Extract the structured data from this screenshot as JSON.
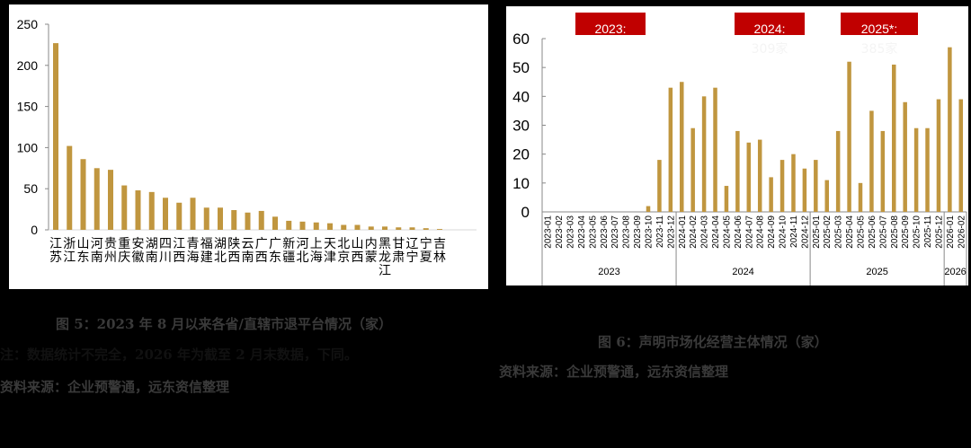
{
  "colors": {
    "bar": "#c0963f",
    "annotation_box": "#c00000",
    "axis": "#888888",
    "background": "#000000",
    "panel": "#ffffff"
  },
  "chart_data": [
    {
      "type": "bar",
      "title": "图5：2023年8月以来各省/直辖市退平台情况（家）",
      "xlabel": "",
      "ylabel": "",
      "ylim": [
        0,
        250
      ],
      "yticks": [
        0,
        50,
        100,
        150,
        200,
        250
      ],
      "grid": false,
      "legend": null,
      "categories": [
        "江苏",
        "浙江",
        "山东",
        "河南",
        "贵州",
        "重庆",
        "安徽",
        "湖南",
        "四川",
        "江西",
        "青海",
        "福建",
        "湖北",
        "陕西",
        "云南",
        "广西",
        "广东",
        "新疆",
        "河北",
        "上海",
        "天津",
        "北京",
        "山西",
        "内蒙",
        "黑龙江",
        "甘肃",
        "辽宁",
        "宁夏",
        "吉林"
      ],
      "values": [
        227,
        102,
        86,
        75,
        73,
        54,
        48,
        46,
        39,
        33,
        39,
        27,
        27,
        24,
        21,
        23,
        16,
        11,
        10,
        9,
        8,
        6,
        6,
        4,
        4,
        3,
        3,
        2,
        1
      ]
    },
    {
      "type": "bar",
      "title": "图6：声明市场化经营主体情况（家）",
      "xlabel": "",
      "ylabel": "",
      "ylim": [
        0,
        60
      ],
      "yticks": [
        0,
        10,
        20,
        30,
        40,
        50,
        60
      ],
      "grid": false,
      "legend": null,
      "categories": [
        "2023-01",
        "2023-02",
        "2023-03",
        "2023-04",
        "2023-05",
        "2023-06",
        "2023-07",
        "2023-08",
        "2023-09",
        "2023-10",
        "2023-11",
        "2023-12",
        "2024-01",
        "2024-02",
        "2024-03",
        "2024-04",
        "2024-05",
        "2024-06",
        "2024-07",
        "2024-08",
        "2024-09",
        "2024-10",
        "2024-11",
        "2024-12",
        "2025-01",
        "2025-02",
        "2025-03",
        "2025-04",
        "2025-05",
        "2025-06",
        "2025-07",
        "2025-08",
        "2025-09",
        "2025-10",
        "2025-11",
        "2025-12",
        "2026-01",
        "2026-02"
      ],
      "values": [
        0,
        0,
        0,
        0,
        0,
        0,
        0,
        0,
        0,
        2,
        18,
        43,
        45,
        29,
        40,
        43,
        9,
        28,
        24,
        25,
        12,
        18,
        20,
        15,
        18,
        11,
        28,
        52,
        10,
        35,
        28,
        51,
        38,
        29,
        29,
        39,
        57,
        39
      ],
      "year_groups": [
        {
          "label": "2023",
          "start": 0,
          "count": 12
        },
        {
          "label": "2024",
          "start": 12,
          "count": 12
        },
        {
          "label": "2025",
          "start": 24,
          "count": 12
        },
        {
          "label": "2026",
          "start": 36,
          "count": 2
        }
      ],
      "annotations": [
        {
          "label": "2023:",
          "sub": ""
        },
        {
          "label": "2024:",
          "sub": "309家"
        },
        {
          "label": "2025*:",
          "sub": "385家"
        }
      ]
    }
  ],
  "captions": {
    "fig5_title": "图 5：2023 年 8 月以来各省/直辖市退平台情况（家）",
    "fig5_note": "注：数据统计不完全，2026 年为截至 2 月末数据，下同。",
    "fig5_source": "资料来源：企业预警通，远东资信整理",
    "fig6_title": "图 6：声明市场化经营主体情况（家）",
    "fig6_source": "资料来源：企业预警通，远东资信整理"
  }
}
